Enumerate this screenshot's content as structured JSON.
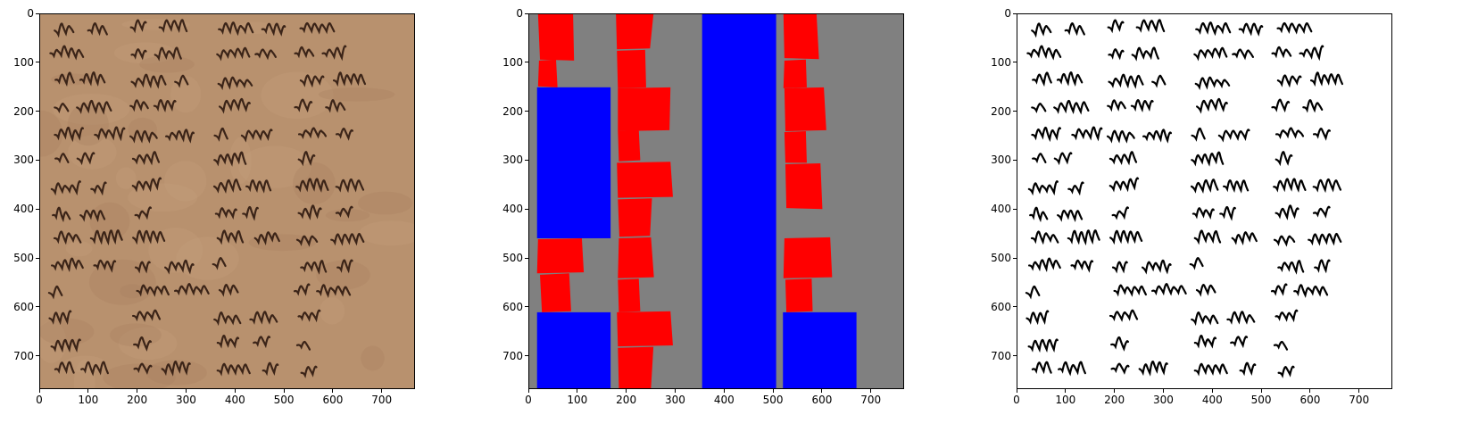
{
  "figure": {
    "panels": [
      {
        "id": "panel-original",
        "name": "original-manuscript-image",
        "content": "photograph",
        "background_color": "#b8916e",
        "ink_color": "#3b2418"
      },
      {
        "id": "panel-segmentation",
        "name": "segmentation-mask",
        "content": "mask",
        "background_color": "#808080",
        "legend_colors": {
          "text": "#ff0000",
          "column": "#0000ff",
          "background": "#808080"
        }
      },
      {
        "id": "panel-binarized",
        "name": "binarized-image",
        "content": "photograph",
        "background_color": "#ffffff",
        "ink_color": "#000000"
      }
    ],
    "x_ticks": [
      "0",
      "100",
      "200",
      "300",
      "400",
      "500",
      "600",
      "700"
    ],
    "y_ticks": [
      "0",
      "100",
      "200",
      "300",
      "400",
      "500",
      "600",
      "700"
    ],
    "x_tick_values": [
      0,
      100,
      200,
      300,
      400,
      500,
      600,
      700
    ],
    "y_tick_values": [
      0,
      100,
      200,
      300,
      400,
      500,
      600,
      700
    ],
    "axis_range": {
      "x": [
        0,
        768
      ],
      "y": [
        0,
        768
      ]
    }
  },
  "mask": {
    "blue_blocks": [
      {
        "x0": 16,
        "y0": 150,
        "x1": 167,
        "y1": 460
      },
      {
        "x0": 16,
        "y0": 612,
        "x1": 167,
        "y1": 768
      },
      {
        "x0": 355,
        "y0": 0,
        "x1": 507,
        "y1": 768
      },
      {
        "x0": 521,
        "y0": 612,
        "x1": 672,
        "y1": 768
      }
    ],
    "red_blocks": [
      [
        [
          18,
          0
        ],
        [
          90,
          0
        ],
        [
          92,
          95
        ],
        [
          22,
          93
        ]
      ],
      [
        [
          20,
          95
        ],
        [
          55,
          93
        ],
        [
          58,
          150
        ],
        [
          18,
          148
        ]
      ],
      [
        [
          18,
          462
        ],
        [
          108,
          460
        ],
        [
          112,
          530
        ],
        [
          16,
          532
        ]
      ],
      [
        [
          22,
          535
        ],
        [
          82,
          532
        ],
        [
          86,
          610
        ],
        [
          26,
          612
        ]
      ],
      [
        [
          178,
          0
        ],
        [
          255,
          0
        ],
        [
          248,
          70
        ],
        [
          180,
          72
        ]
      ],
      [
        [
          180,
          75
        ],
        [
          238,
          73
        ],
        [
          240,
          150
        ],
        [
          182,
          152
        ]
      ],
      [
        [
          182,
          152
        ],
        [
          290,
          150
        ],
        [
          288,
          238
        ],
        [
          182,
          240
        ]
      ],
      [
        [
          182,
          240
        ],
        [
          225,
          238
        ],
        [
          228,
          300
        ],
        [
          184,
          302
        ]
      ],
      [
        [
          180,
          305
        ],
        [
          290,
          303
        ],
        [
          295,
          375
        ],
        [
          182,
          377
        ]
      ],
      [
        [
          182,
          380
        ],
        [
          252,
          378
        ],
        [
          248,
          455
        ],
        [
          185,
          457
        ]
      ],
      [
        [
          184,
          460
        ],
        [
          250,
          458
        ],
        [
          256,
          540
        ],
        [
          182,
          542
        ]
      ],
      [
        [
          182,
          545
        ],
        [
          225,
          543
        ],
        [
          228,
          610
        ],
        [
          184,
          612
        ]
      ],
      [
        [
          180,
          612
        ],
        [
          290,
          610
        ],
        [
          295,
          680
        ],
        [
          182,
          682
        ]
      ],
      [
        [
          182,
          685
        ],
        [
          255,
          683
        ],
        [
          250,
          768
        ],
        [
          184,
          768
        ]
      ],
      [
        [
          522,
          0
        ],
        [
          590,
          0
        ],
        [
          595,
          92
        ],
        [
          524,
          90
        ]
      ],
      [
        [
          524,
          95
        ],
        [
          568,
          93
        ],
        [
          570,
          150
        ],
        [
          522,
          152
        ]
      ],
      [
        [
          524,
          152
        ],
        [
          605,
          150
        ],
        [
          610,
          238
        ],
        [
          526,
          240
        ]
      ],
      [
        [
          524,
          242
        ],
        [
          568,
          240
        ],
        [
          570,
          305
        ],
        [
          526,
          305
        ]
      ],
      [
        [
          526,
          308
        ],
        [
          598,
          306
        ],
        [
          602,
          400
        ],
        [
          528,
          398
        ]
      ],
      [
        [
          524,
          460
        ],
        [
          618,
          458
        ],
        [
          622,
          540
        ],
        [
          522,
          542
        ]
      ],
      [
        [
          526,
          545
        ],
        [
          580,
          543
        ],
        [
          582,
          610
        ],
        [
          528,
          612
        ]
      ]
    ]
  }
}
